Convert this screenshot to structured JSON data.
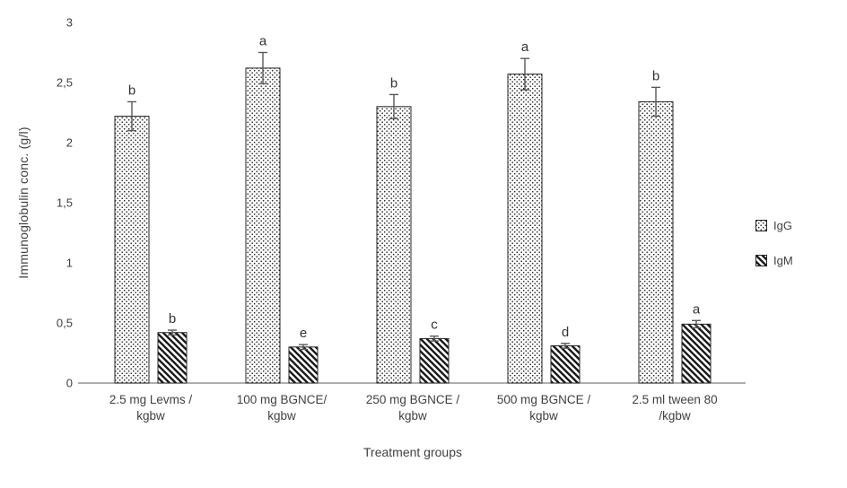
{
  "chart_data": {
    "type": "bar",
    "title": "",
    "xlabel": "Treatment groups",
    "ylabel": "Immunoglobulin conc. (g/l)",
    "ylim": [
      0,
      3
    ],
    "y_ticks": [
      {
        "value": 0,
        "label": "0"
      },
      {
        "value": 0.5,
        "label": "0,5"
      },
      {
        "value": 1,
        "label": "1"
      },
      {
        "value": 1.5,
        "label": "1,5"
      },
      {
        "value": 2,
        "label": "2"
      },
      {
        "value": 2.5,
        "label": "2,5"
      },
      {
        "value": 3,
        "label": "3"
      }
    ],
    "categories": [
      "2.5 mg Levms / kgbw",
      "100 mg BGNCE/ kgbw",
      "250 mg BGNCE / kgbw",
      "500 mg BGNCE / kgbw",
      "2.5 ml tween 80 /kgbw"
    ],
    "series": [
      {
        "name": "IgG",
        "pattern": "dots",
        "values": [
          2.22,
          2.62,
          2.3,
          2.57,
          2.34
        ],
        "errors": [
          0.12,
          0.13,
          0.1,
          0.13,
          0.12
        ],
        "letters": [
          "b",
          "a",
          "b",
          "a",
          "b"
        ]
      },
      {
        "name": "IgM",
        "pattern": "diagonal-stripes",
        "values": [
          0.42,
          0.3,
          0.37,
          0.31,
          0.49
        ],
        "errors": [
          0.02,
          0.02,
          0.02,
          0.02,
          0.03
        ],
        "letters": [
          "b",
          "e",
          "c",
          "d",
          "a"
        ]
      }
    ],
    "legend_position": "right",
    "grid": false,
    "colors": {
      "bar_fill": "#ffffff",
      "bar_stroke": "#262626",
      "pattern_ink": "#1a1a1a",
      "axis_line": "#7f7f7f",
      "text": "#404040",
      "error_bar": "#595959"
    }
  }
}
